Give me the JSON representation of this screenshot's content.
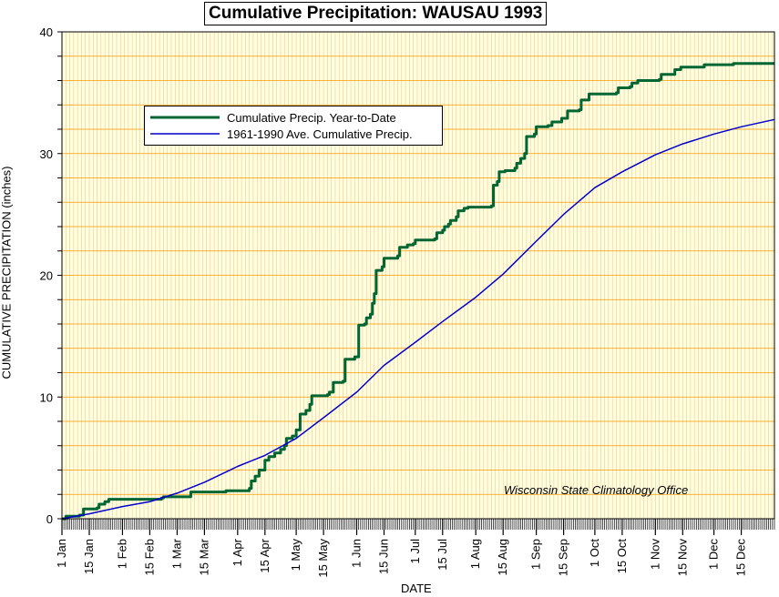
{
  "chart_data": {
    "type": "line",
    "title": "Cumulative Precipitation: WAUSAU 1993",
    "xlabel": "DATE",
    "ylabel": "CUMULATIVE PRECIPITATION (inches)",
    "ylim": [
      0,
      40
    ],
    "yticks": [
      0,
      10,
      20,
      30,
      40
    ],
    "xlim": [
      1,
      366
    ],
    "x_unit": "day of year 1993",
    "xtick_labels": [
      "1 Jan",
      "15 Jan",
      "1 Feb",
      "15 Feb",
      "1 Mar",
      "15 Mar",
      "1 Apr",
      "15 Apr",
      "1 May",
      "15 May",
      "1 Jun",
      "15 Jun",
      "1 Jul",
      "15 Jul",
      "1 Aug",
      "15 Aug",
      "1 Sep",
      "15 Sep",
      "1 Oct",
      "15 Oct",
      "1 Nov",
      "15 Nov",
      "1 Dec",
      "15 Dec"
    ],
    "xtick_days": [
      1,
      15,
      32,
      46,
      60,
      74,
      91,
      105,
      121,
      135,
      152,
      166,
      182,
      196,
      213,
      227,
      244,
      258,
      274,
      288,
      305,
      319,
      335,
      349
    ],
    "grid": true,
    "legend_placement": "upper-left",
    "annotation": "Wisconsin State Climatology Office",
    "series": [
      {
        "name": "Cumulative Precip. Year-to-Date",
        "color": "#006633",
        "step": true,
        "points": [
          [
            1,
            0
          ],
          [
            3,
            0.2
          ],
          [
            10,
            0.3
          ],
          [
            12,
            0.8
          ],
          [
            19,
            0.9
          ],
          [
            20,
            1.2
          ],
          [
            23,
            1.4
          ],
          [
            25,
            1.6
          ],
          [
            50,
            1.6
          ],
          [
            52,
            1.7
          ],
          [
            53,
            1.8
          ],
          [
            64,
            1.8
          ],
          [
            67,
            2.2
          ],
          [
            85,
            2.3
          ],
          [
            94,
            2.3
          ],
          [
            97,
            2.5
          ],
          [
            98,
            3.1
          ],
          [
            100,
            3.5
          ],
          [
            102,
            4.0
          ],
          [
            105,
            4.8
          ],
          [
            107,
            5.1
          ],
          [
            110,
            5.4
          ],
          [
            113,
            5.7
          ],
          [
            115,
            6.0
          ],
          [
            116,
            6.6
          ],
          [
            119,
            6.8
          ],
          [
            121,
            7.3
          ],
          [
            123,
            8.6
          ],
          [
            126,
            8.9
          ],
          [
            128,
            9.4
          ],
          [
            129,
            10.1
          ],
          [
            137,
            10.2
          ],
          [
            138,
            10.4
          ],
          [
            140,
            11.2
          ],
          [
            145,
            11.3
          ],
          [
            146,
            13.1
          ],
          [
            151,
            13.3
          ],
          [
            153,
            15.9
          ],
          [
            156,
            16.0
          ],
          [
            157,
            16.5
          ],
          [
            159,
            16.8
          ],
          [
            160,
            17.7
          ],
          [
            161,
            18.5
          ],
          [
            162,
            20.4
          ],
          [
            165,
            20.7
          ],
          [
            166,
            21.4
          ],
          [
            173,
            21.6
          ],
          [
            174,
            22.3
          ],
          [
            178,
            22.5
          ],
          [
            181,
            22.6
          ],
          [
            182,
            22.9
          ],
          [
            192,
            23.0
          ],
          [
            193,
            23.5
          ],
          [
            196,
            23.7
          ],
          [
            197,
            24.0
          ],
          [
            199,
            24.2
          ],
          [
            200,
            24.5
          ],
          [
            203,
            24.8
          ],
          [
            204,
            25.3
          ],
          [
            207,
            25.5
          ],
          [
            209,
            25.6
          ],
          [
            221,
            25.7
          ],
          [
            222,
            27.4
          ],
          [
            224,
            27.7
          ],
          [
            225,
            28.5
          ],
          [
            228,
            28.6
          ],
          [
            233,
            28.8
          ],
          [
            234,
            29.2
          ],
          [
            236,
            29.6
          ],
          [
            238,
            30.0
          ],
          [
            239,
            31.4
          ],
          [
            243,
            31.6
          ],
          [
            244,
            32.2
          ],
          [
            250,
            32.3
          ],
          [
            252,
            32.6
          ],
          [
            257,
            32.9
          ],
          [
            260,
            33.5
          ],
          [
            266,
            33.6
          ],
          [
            267,
            34.4
          ],
          [
            271,
            34.9
          ],
          [
            285,
            35.0
          ],
          [
            286,
            35.4
          ],
          [
            292,
            35.5
          ],
          [
            293,
            35.8
          ],
          [
            296,
            36.0
          ],
          [
            307,
            36.1
          ],
          [
            308,
            36.5
          ],
          [
            315,
            36.9
          ],
          [
            318,
            37.1
          ],
          [
            330,
            37.3
          ],
          [
            345,
            37.4
          ],
          [
            366,
            37.4
          ]
        ]
      },
      {
        "name": "1961-1990 Ave. Cumulative Precip.",
        "color": "#0000cc",
        "step": false,
        "points": [
          [
            1,
            0
          ],
          [
            15,
            0.4
          ],
          [
            32,
            1.0
          ],
          [
            46,
            1.4
          ],
          [
            60,
            2.1
          ],
          [
            74,
            3.0
          ],
          [
            91,
            4.3
          ],
          [
            105,
            5.2
          ],
          [
            121,
            6.6
          ],
          [
            135,
            8.3
          ],
          [
            152,
            10.4
          ],
          [
            166,
            12.6
          ],
          [
            182,
            14.5
          ],
          [
            196,
            16.2
          ],
          [
            213,
            18.2
          ],
          [
            227,
            20.1
          ],
          [
            244,
            22.8
          ],
          [
            258,
            25.0
          ],
          [
            274,
            27.2
          ],
          [
            288,
            28.5
          ],
          [
            305,
            29.9
          ],
          [
            319,
            30.8
          ],
          [
            335,
            31.6
          ],
          [
            349,
            32.2
          ],
          [
            366,
            32.8
          ]
        ]
      }
    ]
  }
}
